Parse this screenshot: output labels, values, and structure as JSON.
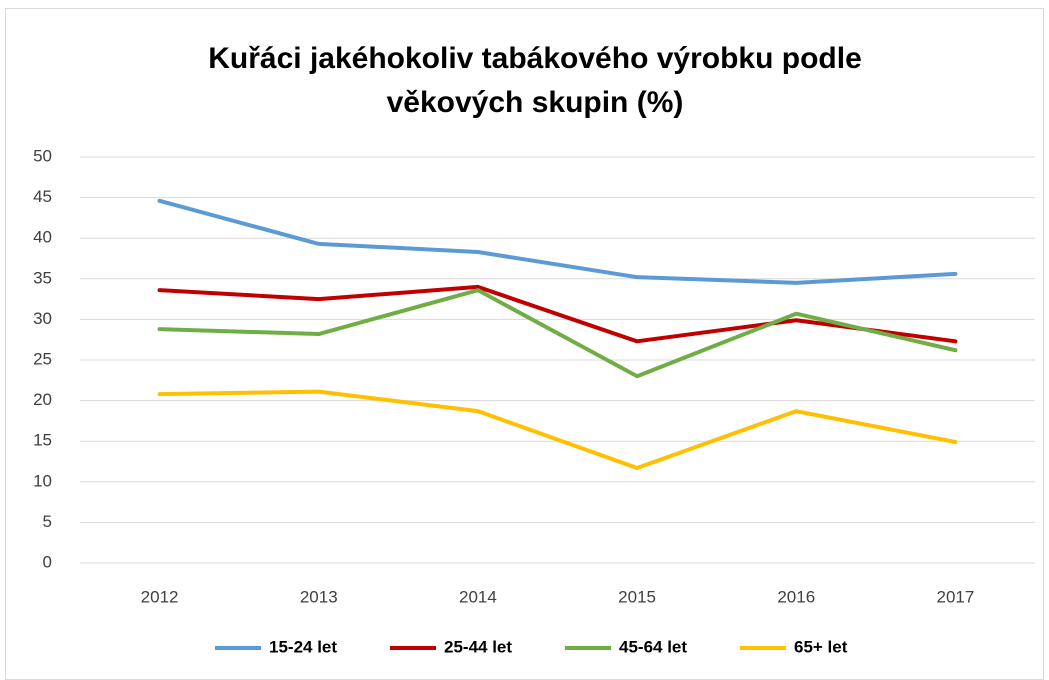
{
  "chart_data": {
    "type": "line",
    "title": [
      "Kuřáci jakéhokoliv tabákového výrobku podle",
      "věkových skupin (%)"
    ],
    "categories": [
      "2012",
      "2013",
      "2014",
      "2015",
      "2016",
      "2017"
    ],
    "series": [
      {
        "name": "15-24 let",
        "color": "#5b9bd5",
        "values": [
          44.6,
          39.3,
          38.3,
          35.2,
          34.5,
          35.6
        ]
      },
      {
        "name": "25-44 let",
        "color": "#c00000",
        "values": [
          33.6,
          32.5,
          34.0,
          27.3,
          29.9,
          27.3
        ]
      },
      {
        "name": "45-64 let",
        "color": "#70ad47",
        "values": [
          28.8,
          28.2,
          33.6,
          23.0,
          30.7,
          26.2
        ]
      },
      {
        "name": "65+ let",
        "color": "#ffc000",
        "values": [
          20.8,
          21.1,
          18.7,
          11.7,
          18.7,
          14.9
        ]
      }
    ],
    "ylim": [
      0,
      50
    ],
    "yticks": [
      0,
      5,
      10,
      15,
      20,
      25,
      30,
      35,
      40,
      45,
      50
    ],
    "grid": true,
    "legend": "bottom"
  }
}
